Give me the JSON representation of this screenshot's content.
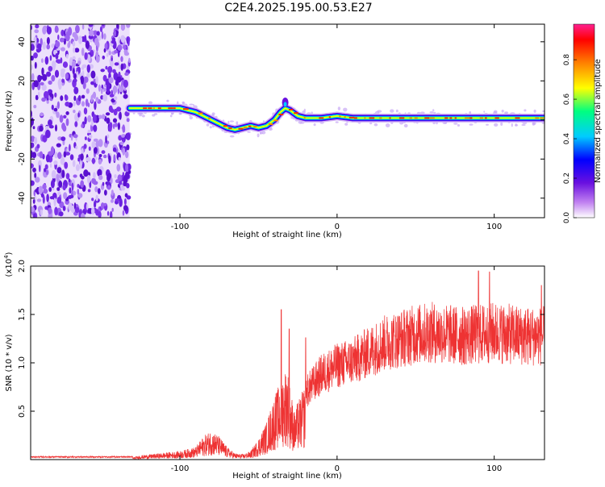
{
  "title": "C2E4.2025.195.00.53.E27",
  "chart_data": [
    {
      "type": "heatmap",
      "xlabel": "Height of straight line (km)",
      "ylabel": "Frequency (Hz)",
      "xlim": [
        -195,
        132
      ],
      "ylim": [
        -50,
        49
      ],
      "xticks": [
        -100,
        0,
        100
      ],
      "yticks": [
        -40,
        -20,
        0,
        20,
        40
      ],
      "grid": false,
      "colorbar": {
        "label": "Normalized spectral amplitude",
        "range": [
          0,
          0.98
        ],
        "ticks": [
          "0.0",
          "0.2",
          "0.4",
          "0.6",
          "0.8"
        ],
        "colormap": [
          "#ffffff",
          "#c080f0",
          "#6a10e0",
          "#0000ff",
          "#00ccff",
          "#00ff80",
          "#ffff00",
          "#ff8000",
          "#ff0000",
          "#ff2090"
        ]
      },
      "noise_region_x": [
        -195,
        -132
      ],
      "ridge": {
        "x": [
          -132,
          -120,
          -110,
          -100,
          -90,
          -80,
          -70,
          -65,
          -60,
          -55,
          -50,
          -45,
          -40,
          -36,
          -33,
          -30,
          -25,
          -20,
          -10,
          0,
          10,
          30,
          60,
          90,
          110,
          132
        ],
        "frequency": [
          6,
          6,
          6,
          6,
          4,
          0,
          -4,
          -5,
          -4,
          -3,
          -4,
          -3,
          0,
          4,
          6,
          5,
          2,
          1,
          1,
          2,
          1,
          1,
          1,
          1,
          1,
          1
        ]
      }
    },
    {
      "type": "line",
      "xlabel": "Height of straight line (km)",
      "ylabel": "SNR (10 * v/v)",
      "multiplier_label": "(x10",
      "multiplier_exponent": "4",
      "xlim": [
        -195,
        132
      ],
      "ylim": [
        0,
        2.0
      ],
      "xticks": [
        -100,
        0,
        100
      ],
      "yticks": [
        "0.5",
        "1.0",
        "1.5",
        "2.0"
      ],
      "ytick_values": [
        0.5,
        1.0,
        1.5,
        2.0
      ],
      "line_color": "#ee3333",
      "grid": false,
      "envelope": {
        "x": [
          -195,
          -130,
          -125,
          -100,
          -90,
          -85,
          -80,
          -75,
          -70,
          -65,
          -60,
          -55,
          -50,
          -45,
          -40,
          -37,
          -35,
          -32,
          -30,
          -27,
          -25,
          -22,
          -20,
          -15,
          -10,
          -5,
          0,
          10,
          20,
          30,
          40,
          50,
          60,
          70,
          80,
          90,
          100,
          110,
          120,
          132
        ],
        "y": [
          0.02,
          0.02,
          0.04,
          0.08,
          0.12,
          0.22,
          0.28,
          0.22,
          0.12,
          0.06,
          0.05,
          0.08,
          0.2,
          0.35,
          0.6,
          0.7,
          0.8,
          0.9,
          0.7,
          0.45,
          0.55,
          0.65,
          0.75,
          0.85,
          0.95,
          1.0,
          1.05,
          1.1,
          1.2,
          1.3,
          1.35,
          1.4,
          1.42,
          1.4,
          1.38,
          1.4,
          1.42,
          1.4,
          1.38,
          1.38
        ]
      },
      "spikes": [
        {
          "x": -35.5,
          "y": 1.55
        },
        {
          "x": -30.5,
          "y": 1.35
        },
        {
          "x": -20,
          "y": 1.26
        },
        {
          "x": 90,
          "y": 1.95
        },
        {
          "x": 97,
          "y": 1.94
        },
        {
          "x": 130,
          "y": 1.8
        }
      ]
    }
  ]
}
